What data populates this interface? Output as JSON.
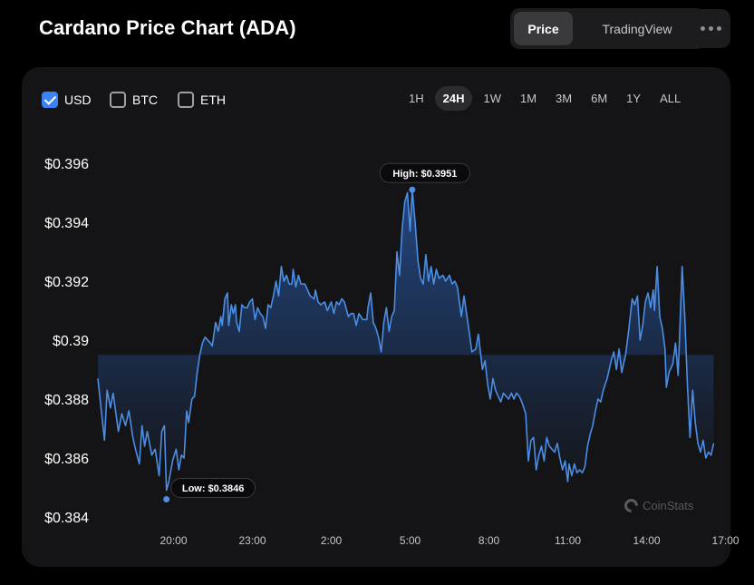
{
  "header": {
    "title": "Cardano Price Chart (ADA)"
  },
  "view_toggle": {
    "items": [
      {
        "label": "Price",
        "active": true
      },
      {
        "label": "TradingView",
        "active": false
      }
    ]
  },
  "currency_options": [
    {
      "label": "USD",
      "checked": true
    },
    {
      "label": "BTC",
      "checked": false
    },
    {
      "label": "ETH",
      "checked": false
    }
  ],
  "time_ranges": [
    {
      "label": "1H",
      "active": false
    },
    {
      "label": "24H",
      "active": true
    },
    {
      "label": "1W",
      "active": false
    },
    {
      "label": "1M",
      "active": false
    },
    {
      "label": "3M",
      "active": false
    },
    {
      "label": "6M",
      "active": false
    },
    {
      "label": "1Y",
      "active": false
    },
    {
      "label": "ALL",
      "active": false
    }
  ],
  "watermark": "CoinStats",
  "colors": {
    "line": "#4a8ee6",
    "accent": "#3b82f6",
    "card": "#141416"
  },
  "chart_data": {
    "type": "area",
    "title": "",
    "xlabel": "",
    "ylabel": "",
    "xlim": [
      17.12,
      41.05
    ],
    "ylim": [
      0.384,
      0.396
    ],
    "y_ticks": [
      0.396,
      0.394,
      0.392,
      0.39,
      0.388,
      0.386,
      0.384
    ],
    "y_tick_labels": [
      "$0.396",
      "$0.394",
      "$0.392",
      "$0.39",
      "$0.388",
      "$0.386",
      "$0.384"
    ],
    "x_ticks": [
      20,
      23,
      26,
      29,
      32,
      35,
      38,
      41
    ],
    "x_tick_labels": [
      "20:00",
      "23:00",
      "2:00",
      "5:00",
      "8:00",
      "11:00",
      "14:00",
      "17:00"
    ],
    "grid": false,
    "annotations": [
      {
        "label": "High: $0.3951",
        "x": 29.08,
        "y": 0.3951,
        "type": "high"
      },
      {
        "label": "Low: $0.3846",
        "x": 19.73,
        "y": 0.3846,
        "type": "low"
      }
    ],
    "series": [
      {
        "values": [
          [
            17.12,
            0.3887
          ],
          [
            17.37,
            0.3866
          ],
          [
            17.47,
            0.3883
          ],
          [
            17.6,
            0.3877
          ],
          [
            17.7,
            0.3882
          ],
          [
            17.9,
            0.3869
          ],
          [
            18.03,
            0.3875
          ],
          [
            18.17,
            0.3871
          ],
          [
            18.3,
            0.3876
          ],
          [
            18.45,
            0.3867
          ],
          [
            18.55,
            0.3863
          ],
          [
            18.7,
            0.3858
          ],
          [
            18.8,
            0.3871
          ],
          [
            18.9,
            0.3864
          ],
          [
            19.0,
            0.3869
          ],
          [
            19.17,
            0.3861
          ],
          [
            19.3,
            0.3863
          ],
          [
            19.45,
            0.3854
          ],
          [
            19.55,
            0.3869
          ],
          [
            19.65,
            0.3871
          ],
          [
            19.73,
            0.3849
          ],
          [
            19.82,
            0.3852
          ],
          [
            19.96,
            0.3859
          ],
          [
            20.1,
            0.3863
          ],
          [
            20.2,
            0.3856
          ],
          [
            20.3,
            0.3861
          ],
          [
            20.4,
            0.386
          ],
          [
            20.5,
            0.3876
          ],
          [
            20.57,
            0.3872
          ],
          [
            20.7,
            0.388
          ],
          [
            20.8,
            0.3881
          ],
          [
            20.9,
            0.3889
          ],
          [
            21.0,
            0.3895
          ],
          [
            21.1,
            0.3899
          ],
          [
            21.2,
            0.3901
          ],
          [
            21.3,
            0.39
          ],
          [
            21.4,
            0.3899
          ],
          [
            21.47,
            0.3898
          ],
          [
            21.6,
            0.3906
          ],
          [
            21.7,
            0.3903
          ],
          [
            21.8,
            0.3908
          ],
          [
            21.85,
            0.3905
          ],
          [
            21.95,
            0.3914
          ],
          [
            22.05,
            0.3916
          ],
          [
            22.1,
            0.3905
          ],
          [
            22.2,
            0.3912
          ],
          [
            22.27,
            0.3909
          ],
          [
            22.35,
            0.3912
          ],
          [
            22.4,
            0.3906
          ],
          [
            22.5,
            0.3903
          ],
          [
            22.6,
            0.3912
          ],
          [
            22.7,
            0.3911
          ],
          [
            22.8,
            0.3911
          ],
          [
            22.9,
            0.3913
          ],
          [
            23.0,
            0.3914
          ],
          [
            23.1,
            0.3907
          ],
          [
            23.2,
            0.3911
          ],
          [
            23.3,
            0.3909
          ],
          [
            23.4,
            0.3908
          ],
          [
            23.5,
            0.3904
          ],
          [
            23.6,
            0.3912
          ],
          [
            23.7,
            0.3911
          ],
          [
            23.8,
            0.3915
          ],
          [
            23.9,
            0.392
          ],
          [
            24.0,
            0.3915
          ],
          [
            24.1,
            0.3925
          ],
          [
            24.2,
            0.392
          ],
          [
            24.3,
            0.3922
          ],
          [
            24.4,
            0.3919
          ],
          [
            24.5,
            0.3919
          ],
          [
            24.55,
            0.3924
          ],
          [
            24.65,
            0.3918
          ],
          [
            24.75,
            0.3922
          ],
          [
            24.85,
            0.3919
          ],
          [
            25.0,
            0.3919
          ],
          [
            25.2,
            0.3915
          ],
          [
            25.35,
            0.3914
          ],
          [
            25.4,
            0.3917
          ],
          [
            25.5,
            0.3913
          ],
          [
            25.6,
            0.3912
          ],
          [
            25.75,
            0.3913
          ],
          [
            25.85,
            0.391
          ],
          [
            26.0,
            0.3913
          ],
          [
            26.1,
            0.3909
          ],
          [
            26.2,
            0.3913
          ],
          [
            26.3,
            0.3912
          ],
          [
            26.4,
            0.3914
          ],
          [
            26.5,
            0.3913
          ],
          [
            26.65,
            0.3908
          ],
          [
            26.75,
            0.3909
          ],
          [
            26.85,
            0.3909
          ],
          [
            26.95,
            0.3905
          ],
          [
            27.05,
            0.3909
          ],
          [
            27.2,
            0.3907
          ],
          [
            27.35,
            0.3907
          ],
          [
            27.4,
            0.3911
          ],
          [
            27.5,
            0.3916
          ],
          [
            27.6,
            0.3906
          ],
          [
            27.7,
            0.3904
          ],
          [
            27.8,
            0.3901
          ],
          [
            27.9,
            0.3896
          ],
          [
            28.0,
            0.3906
          ],
          [
            28.1,
            0.3911
          ],
          [
            28.2,
            0.3903
          ],
          [
            28.3,
            0.3908
          ],
          [
            28.4,
            0.391
          ],
          [
            28.5,
            0.393
          ],
          [
            28.6,
            0.3922
          ],
          [
            28.7,
            0.3938
          ],
          [
            28.8,
            0.3947
          ],
          [
            28.9,
            0.395
          ],
          [
            29.0,
            0.3937
          ],
          [
            29.08,
            0.3951
          ],
          [
            29.2,
            0.3939
          ],
          [
            29.3,
            0.3927
          ],
          [
            29.4,
            0.3921
          ],
          [
            29.5,
            0.3919
          ],
          [
            29.6,
            0.3929
          ],
          [
            29.7,
            0.392
          ],
          [
            29.8,
            0.3925
          ],
          [
            29.9,
            0.3919
          ],
          [
            30.0,
            0.3924
          ],
          [
            30.1,
            0.3921
          ],
          [
            30.25,
            0.3922
          ],
          [
            30.35,
            0.392
          ],
          [
            30.5,
            0.3922
          ],
          [
            30.6,
            0.3919
          ],
          [
            30.7,
            0.392
          ],
          [
            30.8,
            0.3918
          ],
          [
            30.95,
            0.3908
          ],
          [
            31.05,
            0.3915
          ],
          [
            31.2,
            0.3906
          ],
          [
            31.35,
            0.3896
          ],
          [
            31.5,
            0.3897
          ],
          [
            31.6,
            0.3902
          ],
          [
            31.75,
            0.389
          ],
          [
            31.85,
            0.3893
          ],
          [
            31.95,
            0.3885
          ],
          [
            32.05,
            0.388
          ],
          [
            32.15,
            0.3887
          ],
          [
            32.25,
            0.3883
          ],
          [
            32.35,
            0.3881
          ],
          [
            32.45,
            0.3879
          ],
          [
            32.55,
            0.3882
          ],
          [
            32.65,
            0.3881
          ],
          [
            32.75,
            0.388
          ],
          [
            32.85,
            0.3882
          ],
          [
            32.95,
            0.388
          ],
          [
            33.05,
            0.3882
          ],
          [
            33.15,
            0.3881
          ],
          [
            33.25,
            0.3879
          ],
          [
            33.4,
            0.3875
          ],
          [
            33.5,
            0.3859
          ],
          [
            33.6,
            0.3866
          ],
          [
            33.7,
            0.3867
          ],
          [
            33.8,
            0.3856
          ],
          [
            33.9,
            0.3861
          ],
          [
            34.0,
            0.3864
          ],
          [
            34.1,
            0.3859
          ],
          [
            34.2,
            0.3867
          ],
          [
            34.3,
            0.3864
          ],
          [
            34.4,
            0.3863
          ],
          [
            34.5,
            0.3862
          ],
          [
            34.6,
            0.3865
          ],
          [
            34.7,
            0.386
          ],
          [
            34.8,
            0.3856
          ],
          [
            34.9,
            0.3859
          ],
          [
            35.0,
            0.3852
          ],
          [
            35.05,
            0.3858
          ],
          [
            35.15,
            0.3854
          ],
          [
            35.25,
            0.3858
          ],
          [
            35.35,
            0.3855
          ],
          [
            35.45,
            0.3856
          ],
          [
            35.55,
            0.3855
          ],
          [
            35.65,
            0.3857
          ],
          [
            35.75,
            0.3864
          ],
          [
            35.85,
            0.3868
          ],
          [
            35.95,
            0.3871
          ],
          [
            36.05,
            0.3876
          ],
          [
            36.15,
            0.388
          ],
          [
            36.25,
            0.3879
          ],
          [
            36.35,
            0.3883
          ],
          [
            36.5,
            0.3887
          ],
          [
            36.65,
            0.3893
          ],
          [
            36.75,
            0.3896
          ],
          [
            36.85,
            0.389
          ],
          [
            36.95,
            0.3897
          ],
          [
            37.05,
            0.3889
          ],
          [
            37.2,
            0.3895
          ],
          [
            37.3,
            0.3902
          ],
          [
            37.45,
            0.3914
          ],
          [
            37.55,
            0.3912
          ],
          [
            37.65,
            0.3915
          ],
          [
            37.75,
            0.39
          ],
          [
            37.85,
            0.3905
          ],
          [
            37.95,
            0.3913
          ],
          [
            38.05,
            0.3916
          ],
          [
            38.15,
            0.3911
          ],
          [
            38.25,
            0.3917
          ],
          [
            38.3,
            0.391
          ],
          [
            38.4,
            0.3925
          ],
          [
            38.5,
            0.3908
          ],
          [
            38.6,
            0.3904
          ],
          [
            38.7,
            0.3897
          ],
          [
            38.75,
            0.3884
          ],
          [
            38.85,
            0.3889
          ],
          [
            39.0,
            0.3892
          ],
          [
            39.1,
            0.3899
          ],
          [
            39.2,
            0.3888
          ],
          [
            39.35,
            0.3925
          ],
          [
            39.45,
            0.3908
          ],
          [
            39.55,
            0.3885
          ],
          [
            39.65,
            0.3867
          ],
          [
            39.75,
            0.3883
          ],
          [
            39.85,
            0.3872
          ],
          [
            39.95,
            0.3865
          ],
          [
            40.05,
            0.3862
          ],
          [
            40.15,
            0.3866
          ],
          [
            40.25,
            0.386
          ],
          [
            40.35,
            0.3862
          ],
          [
            40.45,
            0.3861
          ],
          [
            40.55,
            0.3865
          ]
        ]
      }
    ]
  }
}
